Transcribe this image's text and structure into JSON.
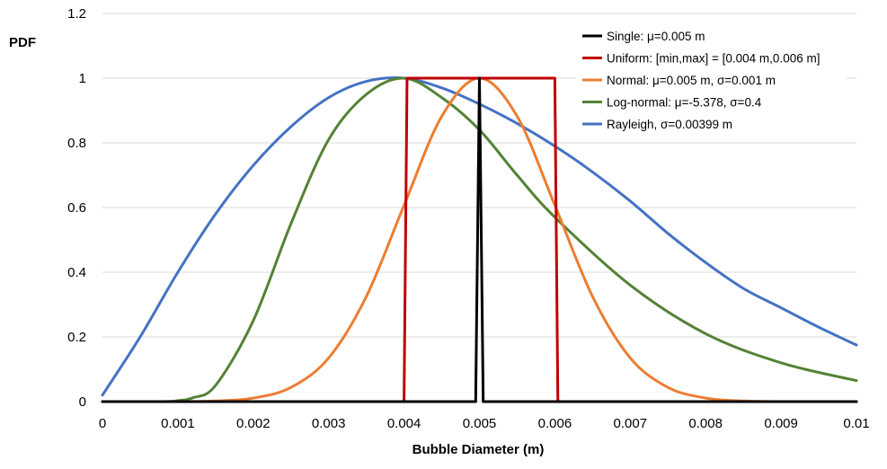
{
  "chart_data": {
    "type": "line",
    "xlabel": "Bubble Diameter (m)",
    "ylabel": "PDF",
    "xlim": [
      0,
      0.01
    ],
    "ylim": [
      0,
      1.2
    ],
    "x_ticks": [
      "0",
      "0.001",
      "0.002",
      "0.003",
      "0.004",
      "0.005",
      "0.006",
      "0.007",
      "0.008",
      "0.009",
      "0.01"
    ],
    "y_ticks": [
      "0",
      "0.2",
      "0.4",
      "0.6",
      "0.8",
      "1",
      "1.2"
    ],
    "grid": "horizontal",
    "legend_position": "top-right",
    "series": [
      {
        "name": "Single: μ=0.005 m",
        "color": "#000000",
        "x": [
          0,
          0.00495,
          0.005,
          0.00505,
          0.01
        ],
        "y": [
          0,
          0,
          1,
          0,
          0
        ]
      },
      {
        "name": "Uniform: [min,max] = [0.004 m,0.006 m]",
        "color": "#c00000",
        "x": [
          0,
          0.004,
          0.00404,
          0.006,
          0.00604,
          0.01
        ],
        "y": [
          0,
          0,
          1,
          1,
          0,
          0
        ]
      },
      {
        "name": "Normal: μ=0.005 m, σ=0.001 m",
        "color": "#ed7d31",
        "x": [
          0,
          0.001,
          0.0015,
          0.002,
          0.0025,
          0.003,
          0.0035,
          0.004,
          0.0045,
          0.005,
          0.0055,
          0.006,
          0.0065,
          0.007,
          0.0075,
          0.008,
          0.0085,
          0.009,
          0.0095,
          0.01
        ],
        "y": [
          0,
          0,
          0.002,
          0.011,
          0.044,
          0.135,
          0.325,
          0.607,
          0.882,
          1.0,
          0.882,
          0.607,
          0.325,
          0.135,
          0.044,
          0.011,
          0.002,
          0,
          0,
          0
        ]
      },
      {
        "name": "Log-normal: μ=-5.378, σ=0.4",
        "color": "#548235",
        "x": [
          0,
          0.0008,
          0.001,
          0.0012,
          0.0015,
          0.002,
          0.0025,
          0.003,
          0.0035,
          0.004,
          0.0045,
          0.005,
          0.0055,
          0.006,
          0.007,
          0.008,
          0.009,
          0.01
        ],
        "y": [
          0,
          0,
          0.003,
          0.012,
          0.05,
          0.25,
          0.55,
          0.81,
          0.95,
          1.0,
          0.94,
          0.84,
          0.7,
          0.57,
          0.36,
          0.21,
          0.12,
          0.065
        ]
      },
      {
        "name": "Rayleigh,  σ=0.00399 m",
        "color": "#4472c4",
        "x": [
          0,
          0.0005,
          0.001,
          0.0015,
          0.002,
          0.0025,
          0.003,
          0.0035,
          0.004,
          0.0045,
          0.005,
          0.0055,
          0.006,
          0.0065,
          0.007,
          0.0075,
          0.008,
          0.0085,
          0.009,
          0.0095,
          0.01
        ],
        "y": [
          0.02,
          0.2,
          0.4,
          0.58,
          0.73,
          0.85,
          0.94,
          0.99,
          1.0,
          0.97,
          0.92,
          0.86,
          0.79,
          0.71,
          0.62,
          0.52,
          0.43,
          0.35,
          0.29,
          0.23,
          0.175
        ]
      }
    ]
  }
}
